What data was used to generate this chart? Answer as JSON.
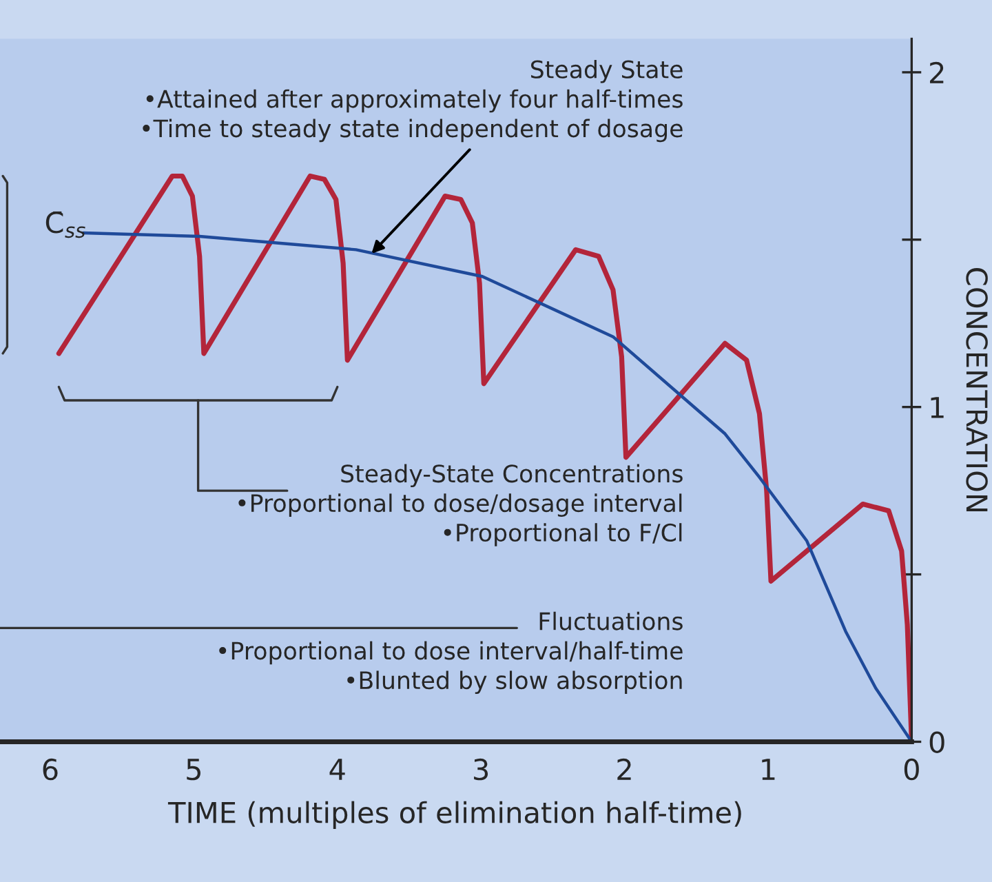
{
  "chart_data": {
    "type": "line",
    "xlabel": "TIME (multiples of elimination half-time)",
    "ylabel": "CONCENTRATION",
    "xlim": [
      6.35,
      0
    ],
    "xticks": [
      0,
      1,
      2,
      3,
      4,
      5,
      6
    ],
    "ylim": [
      0,
      2.1
    ],
    "yticks": [
      0,
      {
        "value": 0.5,
        "label": null
      },
      1,
      {
        "value": 1.5,
        "label": null
      },
      2
    ],
    "grid": false,
    "legend": false,
    "marker": "none",
    "line_style": "solid",
    "series": [
      {
        "color": "#b3253a",
        "x": [
          0,
          0.03,
          0.07,
          0.16,
          0.34,
          0.98,
          1.01,
          1.06,
          1.15,
          1.3,
          1.99,
          2.02,
          2.08,
          2.18,
          2.34,
          2.98,
          3.01,
          3.06,
          3.14,
          3.25,
          3.93,
          3.96,
          4.01,
          4.09,
          4.19,
          4.93,
          4.96,
          5.01,
          5.08,
          5.15,
          5.94
        ],
        "values": [
          0,
          0.35,
          0.57,
          0.69,
          0.71,
          0.48,
          0.75,
          0.98,
          1.14,
          1.19,
          0.85,
          1.15,
          1.35,
          1.45,
          1.47,
          1.07,
          1.37,
          1.55,
          1.62,
          1.63,
          1.14,
          1.43,
          1.62,
          1.68,
          1.69,
          1.16,
          1.45,
          1.63,
          1.69,
          1.69,
          1.16
        ]
      },
      {
        "color": "#1f4a9a",
        "x": [
          0,
          0.25,
          0.46,
          0.73,
          1.06,
          1.3,
          2.08,
          2.99,
          3.87,
          4.96,
          5.77
        ],
        "values": [
          0,
          0.16,
          0.33,
          0.6,
          0.79,
          0.92,
          1.21,
          1.39,
          1.47,
          1.51,
          1.52
        ]
      }
    ],
    "annotations": [
      {
        "text": "Steady State\n•Attained after approximately four half-times\n•Time to steady state independent of dosage",
        "x": 3.78,
        "y": 1.45
      },
      "Steady-State Concentrations\n•Proportional to dose/dosage interval\n•Proportional to F/Cl",
      "Fluctuations\n•Proportional to dose interval/half-time\n•Blunted by slow absorption",
      "C̄$_{ss}$"
    ]
  }
}
